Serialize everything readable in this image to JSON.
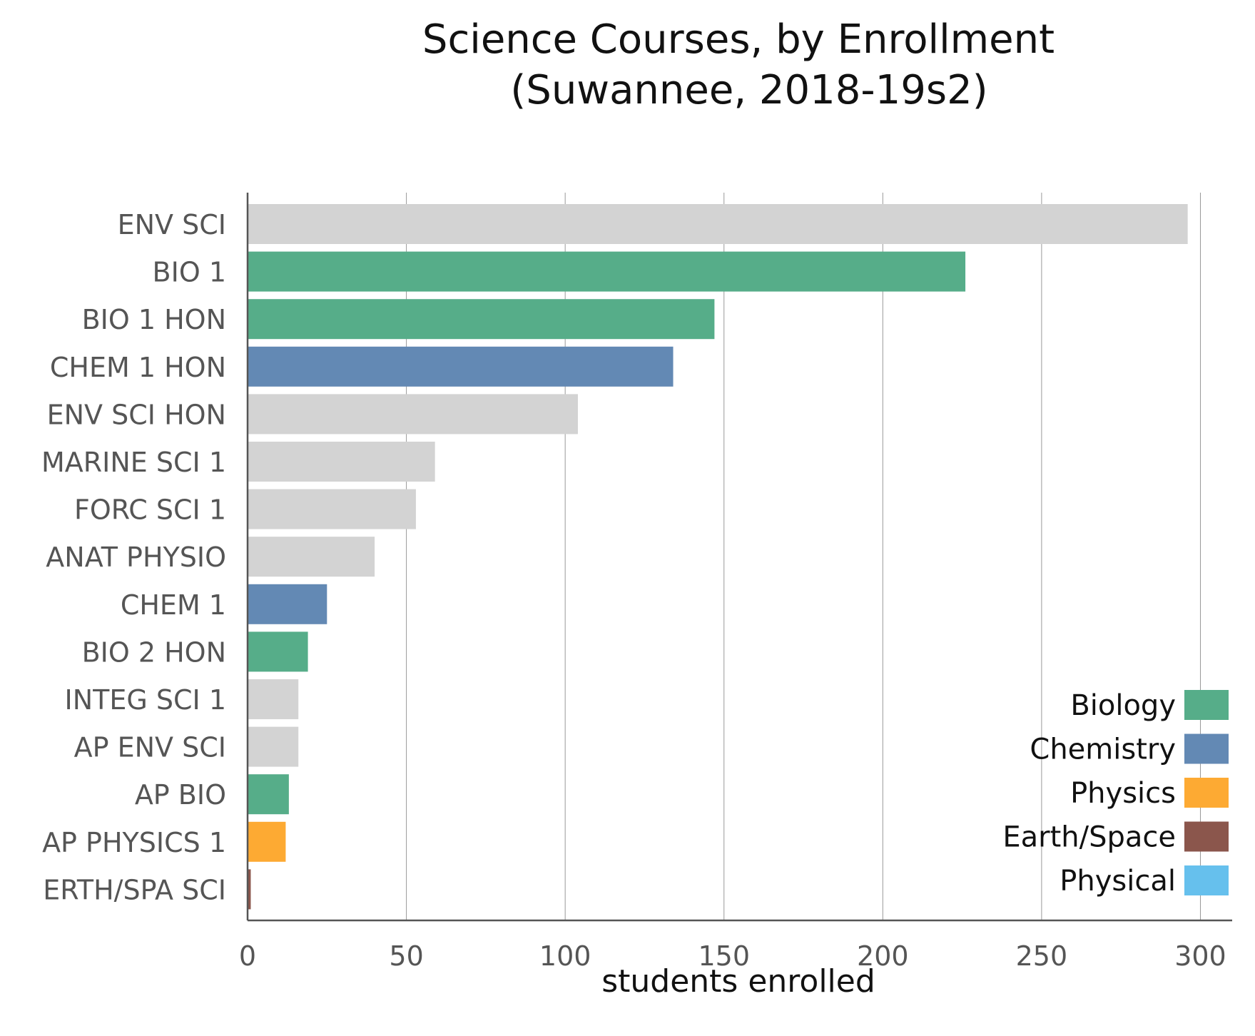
{
  "chart_data": {
    "type": "bar",
    "orientation": "horizontal",
    "title": "Science Courses, by Enrollment",
    "subtitle": "(Suwannee, 2018-19s2)",
    "xlabel": "students enrolled",
    "ylabel": "",
    "xlim": [
      0,
      310
    ],
    "xticks": [
      0,
      50,
      100,
      150,
      200,
      250,
      300
    ],
    "grid": "vertical",
    "legend_position": "bottom-right",
    "categories": [
      "ENV SCI",
      "BIO 1",
      "BIO 1 HON",
      "CHEM 1 HON",
      "ENV SCI HON",
      "MARINE SCI 1",
      "FORC SCI 1",
      "ANAT PHYSIO",
      "CHEM 1",
      "BIO 2 HON",
      "INTEG SCI 1",
      "AP ENV SCI",
      "AP BIO",
      "AP PHYSICS 1",
      "ERTH/SPA SCI"
    ],
    "values": [
      296,
      226,
      147,
      134,
      104,
      59,
      53,
      40,
      25,
      19,
      16,
      16,
      13,
      12,
      1
    ],
    "bar_subjects": [
      "other",
      "biology",
      "biology",
      "chemistry",
      "other",
      "other",
      "other",
      "other",
      "chemistry",
      "biology",
      "other",
      "other",
      "biology",
      "physics",
      "earth_space"
    ],
    "colors": {
      "other": "#d3d3d3",
      "biology": "#56ad89",
      "chemistry": "#6389b4",
      "physics": "#fdaa33",
      "earth_space": "#8b564c",
      "physical": "#66c0ed"
    },
    "legend": [
      {
        "label": "Biology",
        "subject": "biology"
      },
      {
        "label": "Chemistry",
        "subject": "chemistry"
      },
      {
        "label": "Physics",
        "subject": "physics"
      },
      {
        "label": "Earth/Space",
        "subject": "earth_space"
      },
      {
        "label": "Physical",
        "subject": "physical"
      }
    ]
  }
}
